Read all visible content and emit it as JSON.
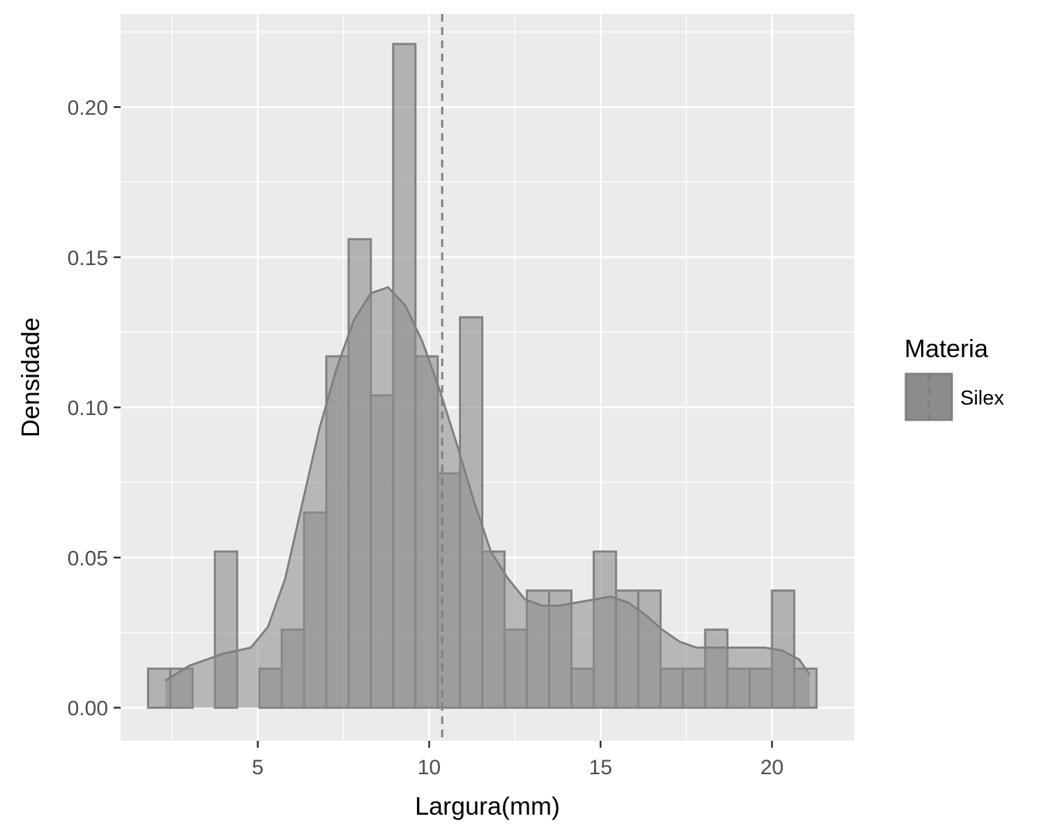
{
  "chart_data": {
    "type": "bar",
    "subtype": "histogram-with-density",
    "title": "",
    "xlabel": "Largura(mm)",
    "ylabel": "Densidade",
    "xlim": [
      1.0,
      22.4
    ],
    "ylim": [
      -0.011,
      0.231
    ],
    "x_ticks": [
      5,
      10,
      15,
      20
    ],
    "x_tick_labels": [
      "5",
      "10",
      "15",
      "20"
    ],
    "y_ticks": [
      0.0,
      0.05,
      0.1,
      0.15,
      0.2
    ],
    "y_tick_labels": [
      "0.00",
      "0.05",
      "0.10",
      "0.15",
      "0.20"
    ],
    "grid": true,
    "legend": {
      "title": "Materia",
      "entries": [
        "Silex"
      ],
      "position": "right"
    },
    "colors": {
      "panel": "#ebebeb",
      "grid": "#ffffff",
      "bar_fill": "#8c8c8c",
      "bar_stroke": "#808080",
      "density_fill": "#8c8c8c",
      "density_line": "#7f7f7f",
      "mean_line": "#7f7f7f"
    },
    "histogram": {
      "bin_width": 0.65,
      "bin_starts": [
        1.8,
        2.45,
        3.1,
        3.75,
        4.4,
        5.05,
        5.7,
        6.35,
        7.0,
        7.65,
        8.3,
        8.95,
        9.6,
        10.25,
        10.9,
        11.55,
        12.2,
        12.85,
        13.5,
        14.15,
        14.8,
        15.45,
        16.1,
        16.75,
        17.4,
        18.05,
        18.7,
        19.35,
        20.0,
        20.65
      ],
      "density": [
        0.013,
        0.013,
        0.0,
        0.052,
        0.0,
        0.013,
        0.026,
        0.065,
        0.117,
        0.156,
        0.104,
        0.221,
        0.117,
        0.078,
        0.13,
        0.052,
        0.026,
        0.039,
        0.039,
        0.013,
        0.052,
        0.039,
        0.039,
        0.013,
        0.013,
        0.026,
        0.013,
        0.013,
        0.039,
        0.013
      ]
    },
    "density_curve": {
      "x": [
        2.3,
        3.0,
        4.0,
        4.8,
        5.3,
        5.8,
        6.3,
        6.8,
        7.3,
        7.8,
        8.3,
        8.8,
        9.3,
        9.8,
        10.3,
        10.8,
        11.3,
        11.8,
        12.3,
        12.8,
        13.3,
        13.8,
        14.3,
        14.8,
        15.3,
        15.8,
        16.3,
        16.8,
        17.3,
        17.8,
        18.3,
        18.8,
        19.3,
        19.8,
        20.3,
        20.8,
        21.1
      ],
      "y": [
        0.009,
        0.014,
        0.018,
        0.02,
        0.027,
        0.043,
        0.068,
        0.093,
        0.113,
        0.129,
        0.138,
        0.14,
        0.134,
        0.122,
        0.106,
        0.088,
        0.069,
        0.052,
        0.043,
        0.036,
        0.034,
        0.034,
        0.035,
        0.036,
        0.037,
        0.035,
        0.031,
        0.026,
        0.022,
        0.02,
        0.02,
        0.02,
        0.02,
        0.02,
        0.019,
        0.016,
        0.011
      ]
    },
    "mean_line_x": 10.38
  }
}
